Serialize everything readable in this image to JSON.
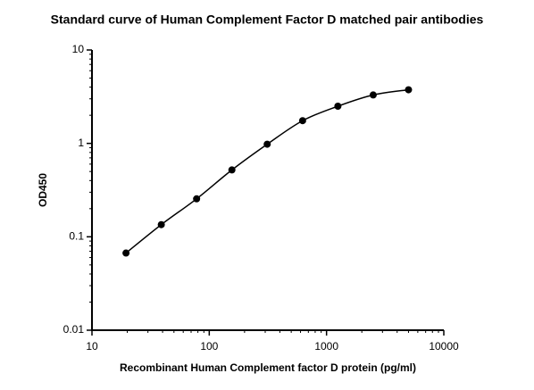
{
  "chart_data": {
    "type": "scatter",
    "title": "Standard curve of Human Complement Factor D matched pair antibodies",
    "x_label": "Recombinant Human Complement factor D protein (pg/ml)",
    "y_label": "OD450",
    "x": [
      19.5,
      39,
      78,
      156,
      312,
      625,
      1250,
      2500,
      5000
    ],
    "values": [
      0.067,
      0.135,
      0.255,
      0.52,
      0.98,
      1.75,
      2.5,
      3.3,
      3.75
    ],
    "color": "#000000",
    "xlim": [
      10,
      10000
    ],
    "ylim": [
      0.01,
      10
    ],
    "xticks": [
      10,
      100,
      1000,
      10000
    ],
    "yticks": [
      0.01,
      0.1,
      1,
      10
    ],
    "xscale": "log",
    "yscale": "log"
  }
}
